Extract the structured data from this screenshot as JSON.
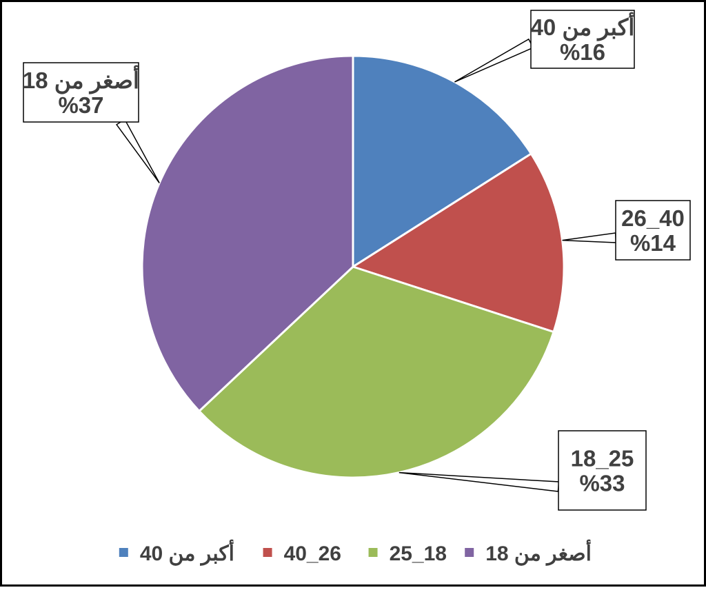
{
  "chart_data": {
    "type": "pie",
    "title": "",
    "start_angle_deg": 0,
    "direction": "clockwise",
    "legend_position": "bottom",
    "slices": [
      {
        "label": "أكبر من 40",
        "value": 16,
        "value_text": "%16",
        "color": "#4F81BD"
      },
      {
        "label": "40_26",
        "value": 14,
        "value_text": "%14",
        "color": "#C0504D"
      },
      {
        "label": "25_18",
        "value": 33,
        "value_text": "%33",
        "color": "#9BBB59"
      },
      {
        "label": "أصغر من 18",
        "value": 37,
        "value_text": "%37",
        "color": "#8064A2"
      }
    ],
    "legend": [
      "أكبر من 40",
      "40_26",
      "25_18",
      "أصغر من 18"
    ]
  }
}
